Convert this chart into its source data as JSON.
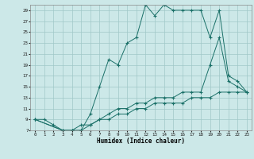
{
  "xlabel": "Humidex (Indice chaleur)",
  "bg_color": "#cce8e8",
  "line_color": "#1a7068",
  "grid_color": "#a0c8c8",
  "xlim": [
    -0.5,
    23.5
  ],
  "ylim": [
    7,
    30
  ],
  "xticks": [
    0,
    1,
    2,
    3,
    4,
    5,
    6,
    7,
    8,
    9,
    10,
    11,
    12,
    13,
    14,
    15,
    16,
    17,
    18,
    19,
    20,
    21,
    22,
    23
  ],
  "yticks": [
    7,
    9,
    11,
    13,
    15,
    17,
    19,
    21,
    23,
    25,
    27,
    29
  ],
  "curve1_x": [
    0,
    1,
    2,
    3,
    4,
    5,
    6,
    7,
    8,
    9,
    10,
    11,
    12,
    13,
    14,
    15,
    16,
    17,
    18,
    19,
    20,
    21,
    22,
    23
  ],
  "curve1_y": [
    9,
    9,
    8,
    7,
    7,
    7,
    10,
    15,
    20,
    19,
    23,
    24,
    30,
    28,
    30,
    29,
    29,
    29,
    29,
    24,
    29,
    17,
    16,
    14
  ],
  "curve2_x": [
    0,
    3,
    4,
    5,
    6,
    7,
    8,
    9,
    10,
    11,
    12,
    13,
    14,
    15,
    16,
    17,
    18,
    19,
    20,
    21,
    22,
    23
  ],
  "curve2_y": [
    9,
    7,
    7,
    7,
    8,
    9,
    10,
    11,
    11,
    12,
    12,
    13,
    13,
    13,
    14,
    14,
    14,
    19,
    24,
    16,
    15,
    14
  ],
  "curve3_x": [
    0,
    3,
    4,
    5,
    6,
    7,
    8,
    9,
    10,
    11,
    12,
    13,
    14,
    15,
    16,
    17,
    18,
    19,
    20,
    21,
    22,
    23
  ],
  "curve3_y": [
    9,
    7,
    7,
    8,
    8,
    9,
    9,
    10,
    10,
    11,
    11,
    12,
    12,
    12,
    12,
    13,
    13,
    13,
    14,
    14,
    14,
    14
  ]
}
